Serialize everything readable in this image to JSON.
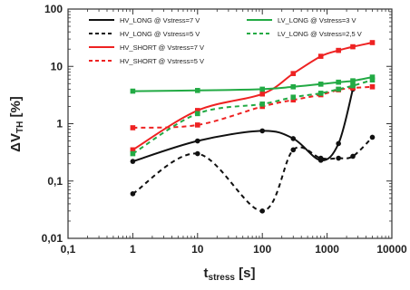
{
  "chart_data": {
    "type": "line",
    "xscale": "log",
    "yscale": "log",
    "xlim": [
      0.1,
      10000
    ],
    "ylim": [
      0.01,
      100
    ],
    "x_ticks": [
      "0,1",
      "1",
      "10",
      "100",
      "1000",
      "10000"
    ],
    "y_ticks": [
      "0,01",
      "0,1",
      "1",
      "10",
      "100"
    ],
    "xlabel": {
      "main": "t",
      "sub": "stress",
      "unit": " [s]"
    },
    "ylabel": {
      "main": "ΔV",
      "sub": "TH",
      "unit": " [%]"
    },
    "grid": false,
    "legend_placement": "top",
    "series": [
      {
        "name": "HV_LONG @ Vstress=7 V",
        "color": "#111111",
        "dash": "solid",
        "marker": "circle",
        "x": [
          1,
          10,
          100,
          300,
          800,
          1500,
          2500
        ],
        "y": [
          0.22,
          0.5,
          0.75,
          0.55,
          0.23,
          0.45,
          4.0
        ]
      },
      {
        "name": "HV_LONG @ Vstress=5 V",
        "color": "#111111",
        "dash": "dashed",
        "marker": "circle",
        "x": [
          1,
          10,
          100,
          300,
          800,
          1500,
          2500,
          5000
        ],
        "y": [
          0.06,
          0.3,
          0.03,
          0.35,
          0.25,
          0.25,
          0.27,
          0.58
        ]
      },
      {
        "name": "HV_SHORT @ Vstress=7 V",
        "color": "#ee2222",
        "dash": "solid",
        "marker": "square",
        "x": [
          1,
          10,
          100,
          300,
          800,
          1500,
          2500,
          5000
        ],
        "y": [
          0.35,
          1.7,
          3.3,
          7.5,
          15,
          19,
          22,
          26
        ]
      },
      {
        "name": "HV_SHORT @ Vstress=5 V",
        "color": "#ee2222",
        "dash": "dashed",
        "marker": "square",
        "x": [
          1,
          10,
          100,
          300,
          800,
          1500,
          2500,
          5000
        ],
        "y": [
          0.85,
          0.95,
          2.0,
          2.6,
          3.2,
          3.9,
          4.2,
          4.4
        ]
      },
      {
        "name": "LV_LONG @ Vstress=3 V",
        "color": "#22aa44",
        "dash": "solid",
        "marker": "square",
        "x": [
          1,
          10,
          100,
          300,
          800,
          1500,
          2500,
          5000
        ],
        "y": [
          3.7,
          3.8,
          4.0,
          4.4,
          4.9,
          5.3,
          5.6,
          6.5
        ]
      },
      {
        "name": "LV_LONG @ Vstress=2,5 V",
        "color": "#22aa44",
        "dash": "dashed",
        "marker": "square",
        "x": [
          1,
          10,
          100,
          300,
          800,
          1500,
          2500,
          5000
        ],
        "y": [
          0.3,
          1.5,
          2.2,
          2.9,
          3.4,
          4.0,
          4.6,
          5.8
        ]
      }
    ]
  }
}
